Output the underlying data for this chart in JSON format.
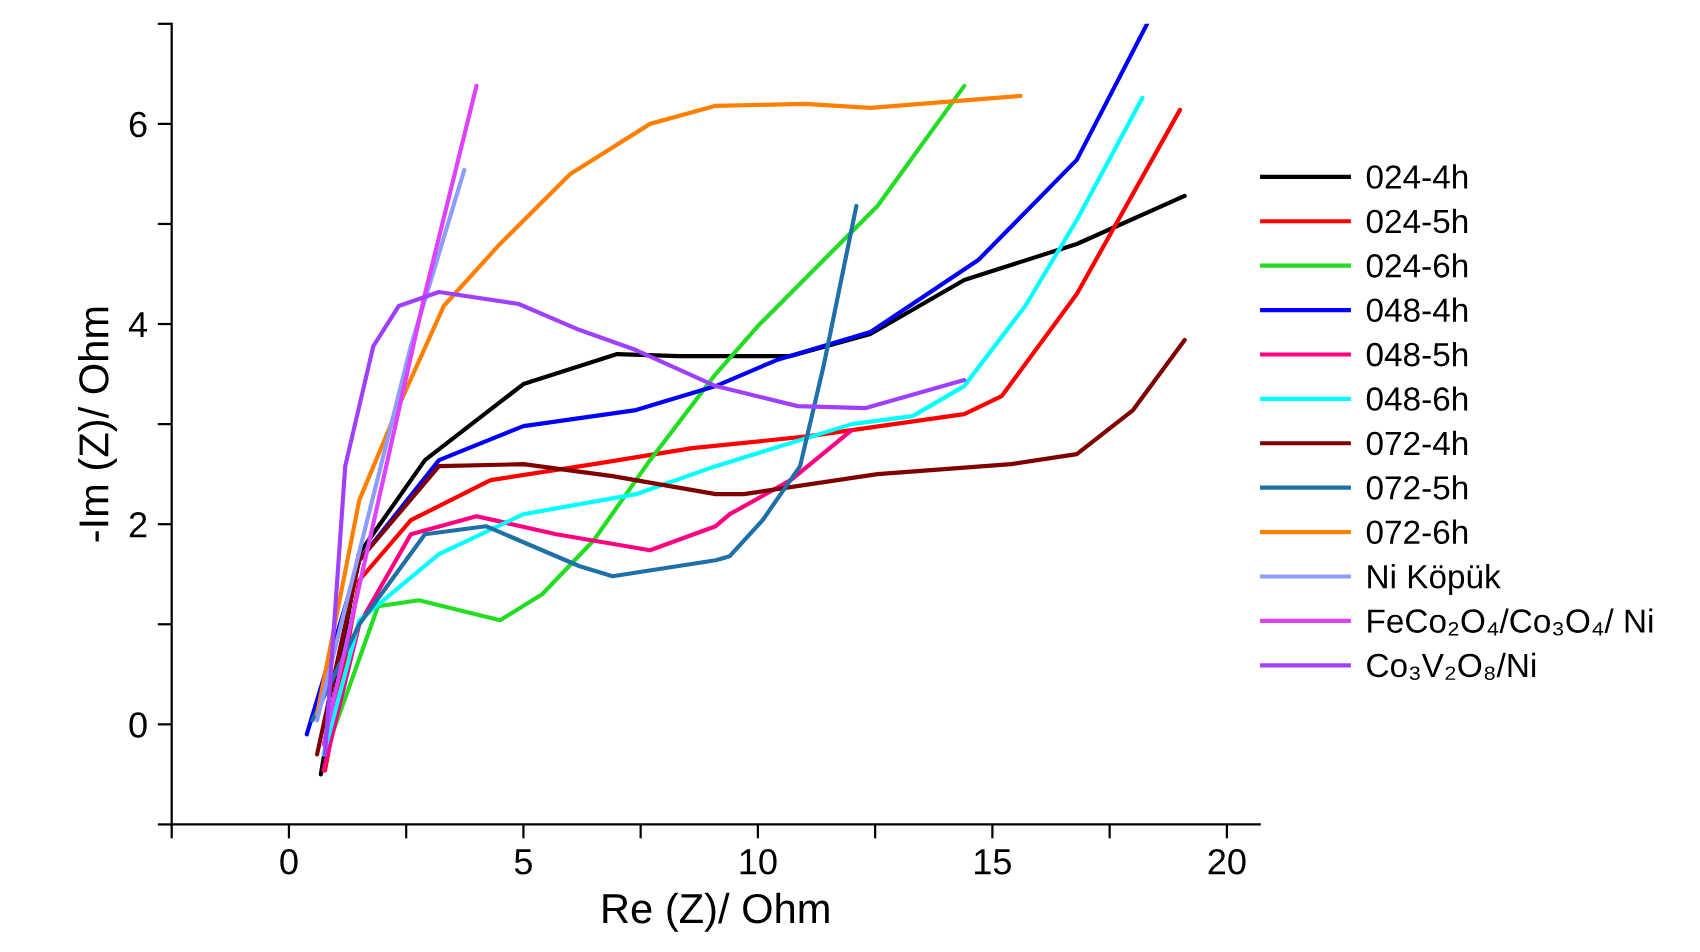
{
  "chart_data": {
    "type": "line",
    "xlabel": "Re (Z)/ Ohm",
    "ylabel": "-Im (Z)/ Ohm",
    "xlim": [
      -2.5,
      20.7
    ],
    "ylim": [
      -1,
      7
    ],
    "xticks": [
      {
        "value": -2.5,
        "label": null
      },
      0,
      {
        "value": 2.5,
        "label": null
      },
      5,
      {
        "value": 7.5,
        "label": null
      },
      10,
      {
        "value": 12.5,
        "label": null
      },
      15,
      {
        "value": 17.5,
        "label": null
      },
      20
    ],
    "yticks": [
      {
        "value": -1,
        "label": null
      },
      0,
      {
        "value": 1,
        "label": null
      },
      2,
      {
        "value": 3,
        "label": null
      },
      4,
      {
        "value": 5,
        "label": null
      },
      6,
      {
        "value": 7,
        "label": null
      }
    ],
    "grid": false,
    "legend": "right",
    "marker": "none",
    "line_style": "solid",
    "series": [
      {
        "name": "024-4h",
        "color": "#000000",
        "x": [
          0.68,
          1.49,
          2.9,
          5.0,
          7.0,
          8.3,
          10.7,
          12.4,
          14.4,
          16.8,
          19.1
        ],
        "values": [
          -0.5,
          1.7,
          2.64,
          3.4,
          3.7,
          3.68,
          3.68,
          3.9,
          4.44,
          4.8,
          5.28
        ]
      },
      {
        "name": "024-5h",
        "color": "#ff0000",
        "x": [
          0.77,
          1.5,
          2.6,
          4.3,
          6.5,
          8.6,
          11.1,
          14.4,
          15.2,
          16.8,
          19.0
        ],
        "values": [
          -0.46,
          1.44,
          2.04,
          2.44,
          2.6,
          2.76,
          2.88,
          3.1,
          3.28,
          4.3,
          6.14
        ]
      },
      {
        "name": "024-6h",
        "color": "#22dd22",
        "x": [
          0.77,
          1.9,
          2.77,
          4.5,
          5.4,
          6.5,
          7.7,
          9.1,
          10.0,
          12.55,
          14.4
        ],
        "values": [
          -0.3,
          1.18,
          1.24,
          1.04,
          1.3,
          1.84,
          2.64,
          3.5,
          3.98,
          5.18,
          6.38
        ]
      },
      {
        "name": "048-4h",
        "color": "#0000ff",
        "x": [
          0.38,
          1.5,
          3.2,
          5.0,
          7.4,
          9.1,
          10.4,
          12.4,
          14.7,
          16.8,
          18.3
        ],
        "values": [
          -0.1,
          1.64,
          2.64,
          2.98,
          3.14,
          3.38,
          3.64,
          3.92,
          4.64,
          5.64,
          7.0
        ]
      },
      {
        "name": "048-5h",
        "color": "#ff0080",
        "x": [
          0.74,
          1.5,
          2.6,
          4.0,
          5.7,
          7.7,
          9.1,
          9.4,
          10.7,
          12.0
        ],
        "values": [
          -0.46,
          1.0,
          1.9,
          2.08,
          1.9,
          1.74,
          1.98,
          2.1,
          2.44,
          2.94
        ]
      },
      {
        "name": "048-6h",
        "color": "#00ffff",
        "x": [
          0.74,
          1.5,
          3.2,
          5.0,
          7.4,
          9.1,
          12.0,
          13.3,
          14.4,
          15.7,
          16.8,
          18.2
        ],
        "values": [
          -0.3,
          1.04,
          1.7,
          2.1,
          2.3,
          2.58,
          3.0,
          3.08,
          3.38,
          4.18,
          5.04,
          6.26
        ]
      },
      {
        "name": "072-4h",
        "color": "#800000",
        "x": [
          0.6,
          1.5,
          3.2,
          5.0,
          6.9,
          9.1,
          9.7,
          12.55,
          15.4,
          16.8,
          18.0,
          19.1
        ],
        "values": [
          -0.3,
          1.64,
          2.58,
          2.6,
          2.48,
          2.3,
          2.3,
          2.5,
          2.6,
          2.7,
          3.14,
          3.84
        ]
      },
      {
        "name": "072-5h",
        "color": "#1f6fa8",
        "x": [
          0.5,
          1.5,
          2.9,
          4.2,
          5.2,
          6.2,
          6.9,
          9.1,
          9.4,
          10.1,
          10.9,
          11.4,
          12.1
        ],
        "values": [
          0.04,
          1.0,
          1.9,
          1.98,
          1.78,
          1.58,
          1.48,
          1.64,
          1.68,
          2.04,
          2.58,
          3.58,
          5.18
        ]
      },
      {
        "name": "072-6h",
        "color": "#ff8000",
        "x": [
          0.6,
          1.5,
          2.34,
          3.3,
          4.5,
          6.0,
          7.7,
          9.1,
          11.0,
          12.4,
          15.6
        ],
        "values": [
          0.1,
          2.24,
          3.18,
          4.18,
          4.8,
          5.5,
          6.0,
          6.18,
          6.2,
          6.16,
          6.28
        ]
      },
      {
        "name": "Ni Köpük",
        "color": "#8c9cff",
        "x": [
          0.6,
          2.6,
          3.74
        ],
        "values": [
          0.04,
          3.78,
          5.54
        ]
      },
      {
        "name": "FeCo₂O₄/Co₃O₄/ Ni",
        "color": "#e040ff",
        "x": [
          0.74,
          2.9,
          4.0
        ],
        "values": [
          -0.2,
          4.3,
          6.38
        ]
      },
      {
        "name": "Co₃V₂O₈/Ni",
        "color": "#a040ff",
        "x": [
          0.77,
          1.2,
          1.8,
          2.34,
          3.2,
          4.9,
          6.2,
          7.4,
          9.1,
          10.85,
          12.3,
          14.4
        ],
        "values": [
          -0.3,
          2.58,
          3.78,
          4.18,
          4.32,
          4.2,
          3.94,
          3.74,
          3.38,
          3.18,
          3.16,
          3.44
        ]
      }
    ]
  }
}
